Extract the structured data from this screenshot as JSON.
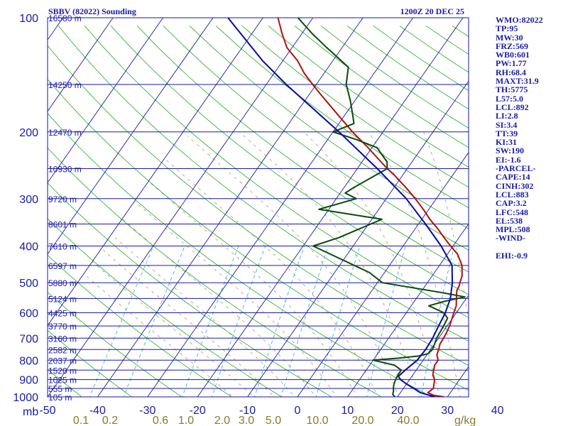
{
  "chart_data": {
    "type": "line",
    "title_left": "SBBV (82022) Sounding",
    "title_right": "1200Z 20 DEC 25",
    "y_axis_unit": "mb",
    "x_axis_unit": "g/kg",
    "pressure_ticks": [
      {
        "p": 100,
        "label": "100"
      },
      {
        "p": 200,
        "label": "200"
      },
      {
        "p": 300,
        "label": "300"
      },
      {
        "p": 400,
        "label": "400"
      },
      {
        "p": 500,
        "label": "500"
      },
      {
        "p": 600,
        "label": "600"
      },
      {
        "p": 700,
        "label": "700"
      },
      {
        "p": 800,
        "label": "800"
      },
      {
        "p": 900,
        "label": "900"
      },
      {
        "p": 1000,
        "label": "1000"
      }
    ],
    "temperature_ticks": [
      {
        "t": -50,
        "label": "-50"
      },
      {
        "t": -40,
        "label": "-40"
      },
      {
        "t": -30,
        "label": "-30"
      },
      {
        "t": -20,
        "label": "-20"
      },
      {
        "t": -10,
        "label": "-10"
      },
      {
        "t": 0,
        "label": "0"
      },
      {
        "t": 10,
        "label": "10"
      },
      {
        "t": 20,
        "label": "20"
      },
      {
        "t": 30,
        "label": "30"
      },
      {
        "t": 40,
        "label": "40"
      }
    ],
    "mixing_ratio_labels": [
      "0.1",
      "0.2",
      "0.6",
      "1.0",
      "2.0",
      "3.0",
      "5.0",
      "10.0",
      "20.0",
      "40.0"
    ],
    "height_levels": [
      {
        "p": 100,
        "label": "16580 m"
      },
      {
        "p": 150,
        "label": "14250 m"
      },
      {
        "p": 200,
        "label": "12470 m"
      },
      {
        "p": 250,
        "label": "10930 m"
      },
      {
        "p": 300,
        "label": "9720 m"
      },
      {
        "p": 350,
        "label": "8601 m"
      },
      {
        "p": 400,
        "label": "7610 m"
      },
      {
        "p": 450,
        "label": "6597 m"
      },
      {
        "p": 500,
        "label": "5880 m"
      },
      {
        "p": 550,
        "label": "5124 m"
      },
      {
        "p": 600,
        "label": "4425 m"
      },
      {
        "p": 650,
        "label": "3770 m"
      },
      {
        "p": 700,
        "label": "3160 m"
      },
      {
        "p": 750,
        "label": "2582 m"
      },
      {
        "p": 800,
        "label": "2037 m"
      },
      {
        "p": 850,
        "label": "1520 m"
      },
      {
        "p": 900,
        "label": "1025 m"
      },
      {
        "p": 950,
        "label": "555 m"
      },
      {
        "p": 1000,
        "label": "105 m"
      }
    ],
    "series": [
      {
        "name": "temperature",
        "color": "#b01010",
        "points": [
          [
            1000,
            29.3
          ],
          [
            990,
            27
          ],
          [
            975,
            25.5
          ],
          [
            950,
            26
          ],
          [
            925,
            25.5
          ],
          [
            900,
            25
          ],
          [
            875,
            24
          ],
          [
            850,
            23.5
          ],
          [
            825,
            23
          ],
          [
            800,
            23
          ],
          [
            775,
            22
          ],
          [
            750,
            21.6
          ],
          [
            725,
            21.1
          ],
          [
            700,
            21
          ],
          [
            675,
            20.8
          ],
          [
            650,
            20.5
          ],
          [
            625,
            20
          ],
          [
            600,
            19.5
          ],
          [
            575,
            19
          ],
          [
            550,
            18
          ],
          [
            525,
            17
          ],
          [
            510,
            16.8
          ],
          [
            500,
            16.5
          ],
          [
            480,
            16
          ],
          [
            450,
            14.5
          ],
          [
            420,
            12
          ],
          [
            400,
            9.5
          ],
          [
            380,
            7
          ],
          [
            360,
            4.5
          ],
          [
            340,
            1.6
          ],
          [
            320,
            -1.1
          ],
          [
            300,
            -4.2
          ],
          [
            280,
            -7.7
          ],
          [
            260,
            -11.7
          ],
          [
            250,
            -14
          ],
          [
            240,
            -16.2
          ],
          [
            220,
            -20.8
          ],
          [
            200,
            -26.1
          ],
          [
            180,
            -31.5
          ],
          [
            160,
            -37.5
          ],
          [
            150,
            -40.7
          ],
          [
            140,
            -44
          ],
          [
            130,
            -47
          ],
          [
            120,
            -51
          ],
          [
            110,
            -54
          ],
          [
            100,
            -57
          ]
        ]
      },
      {
        "name": "dewpoint",
        "color": "#0a4a0a",
        "points": [
          [
            1000,
            19.5
          ],
          [
            985,
            18.7
          ],
          [
            965,
            18.4
          ],
          [
            950,
            18
          ],
          [
            925,
            17.5
          ],
          [
            900,
            17.2
          ],
          [
            875,
            17
          ],
          [
            860,
            17
          ],
          [
            850,
            17
          ],
          [
            825,
            15
          ],
          [
            800,
            10
          ],
          [
            790,
            15
          ],
          [
            780,
            18.5
          ],
          [
            770,
            20
          ],
          [
            750,
            20.4
          ],
          [
            700,
            19.6
          ],
          [
            650,
            19.3
          ],
          [
            620,
            19
          ],
          [
            600,
            17.5
          ],
          [
            575,
            13.5
          ],
          [
            560,
            16
          ],
          [
            545,
            19.5
          ],
          [
            530,
            14
          ],
          [
            500,
            1
          ],
          [
            470,
            -3
          ],
          [
            400,
            -18
          ],
          [
            380,
            -14
          ],
          [
            340,
            -8
          ],
          [
            320,
            -22
          ],
          [
            300,
            -16
          ],
          [
            290,
            -19
          ],
          [
            280,
            -18
          ],
          [
            250,
            -14
          ],
          [
            240,
            -15
          ],
          [
            220,
            -19
          ],
          [
            210,
            -24
          ],
          [
            200,
            -30
          ],
          [
            190,
            -27
          ],
          [
            180,
            -28.5
          ],
          [
            165,
            -31
          ],
          [
            150,
            -34
          ],
          [
            135,
            -36
          ],
          [
            120,
            -43
          ],
          [
            110,
            -48
          ],
          [
            100,
            -53
          ]
        ]
      },
      {
        "name": "parcel",
        "color": "#0a0aa0",
        "points": [
          [
            1000,
            27.5
          ],
          [
            975,
            24
          ],
          [
            950,
            22.1
          ],
          [
            925,
            20
          ],
          [
            900,
            18.2
          ],
          [
            883,
            17.3
          ],
          [
            850,
            17.8
          ],
          [
            800,
            18.8
          ],
          [
            750,
            19
          ],
          [
            700,
            18.8
          ],
          [
            650,
            18.3
          ],
          [
            600,
            17.8
          ],
          [
            550,
            16.8
          ],
          [
            500,
            15
          ],
          [
            450,
            12.5
          ],
          [
            400,
            7.6
          ],
          [
            350,
            1.4
          ],
          [
            300,
            -6
          ],
          [
            250,
            -16
          ],
          [
            200,
            -28.8
          ],
          [
            150,
            -46
          ],
          [
            130,
            -54
          ],
          [
            100,
            -67
          ]
        ]
      }
    ]
  },
  "indices": [
    "WMO:82022",
    "TP:95",
    "MW:30",
    "FRZ:569",
    "WB0:601",
    "PW:1.77",
    "RH:68.4",
    "MAXT:31.9",
    "TH:5775",
    "L57:5.0",
    "LCL:892",
    "LI:2.8",
    "SI:3.4",
    "TT:39",
    "KI:31",
    "SW:190",
    "EI:-1.6",
    "-PARCEL-",
    "CAPE:14",
    "CINH:302",
    "LCL:883",
    "CAP:3.2",
    "LFC:548",
    "EL:538",
    "MPL:508",
    "-WIND-",
    "",
    "EHI:-0.9"
  ],
  "colors": {
    "isobar": "#1a1aa6",
    "isotherm": "#1a1aa6",
    "dry_adiabat": "#22aa22",
    "mixing_ratio": "#2fa8d0",
    "moist_adiabat": "#9a8a5a"
  }
}
